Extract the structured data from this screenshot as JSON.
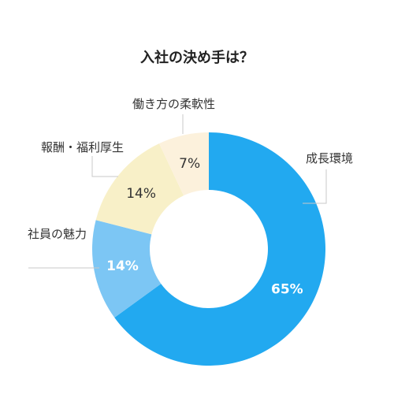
{
  "chart_data": {
    "type": "pie",
    "title": "入社の決め手は？",
    "slices": [
      {
        "label": "成長環境",
        "value": 65,
        "value_label": "65%",
        "color": "#22a9f0",
        "value_color": "#ffffff"
      },
      {
        "label": "社員の魅力",
        "value": 14,
        "value_label": "14%",
        "color": "#7cc6f4",
        "value_color": "#ffffff"
      },
      {
        "label": "報酬・福利厚生",
        "value": 14,
        "value_label": "14%",
        "color": "#f8f0c8",
        "value_color": "#333333"
      },
      {
        "label": "働き方の柔軟性",
        "value": 7,
        "value_label": "7%",
        "color": "#fcf1dc",
        "value_color": "#333333"
      }
    ]
  }
}
